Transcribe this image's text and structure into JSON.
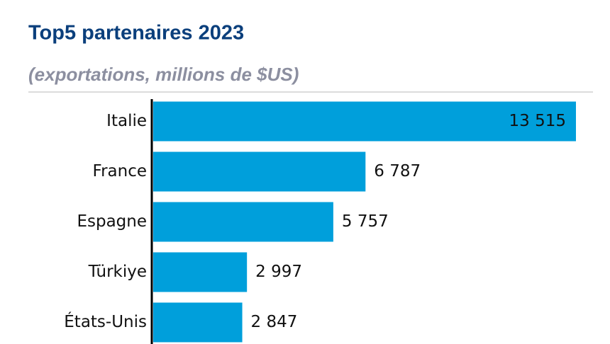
{
  "chart_data": {
    "type": "bar",
    "orientation": "horizontal",
    "title": "Top5 partenaires 2023",
    "subtitle": "(exportations, millions de $US)",
    "categories": [
      "Italie",
      "France",
      "Espagne",
      "Türkiye",
      "États-Unis"
    ],
    "values": [
      13515,
      6787,
      5757,
      2997,
      2847
    ],
    "value_labels": [
      "13 515",
      "6 787",
      "5 757",
      "2 997",
      "2 847"
    ],
    "color": "#009fdb"
  }
}
